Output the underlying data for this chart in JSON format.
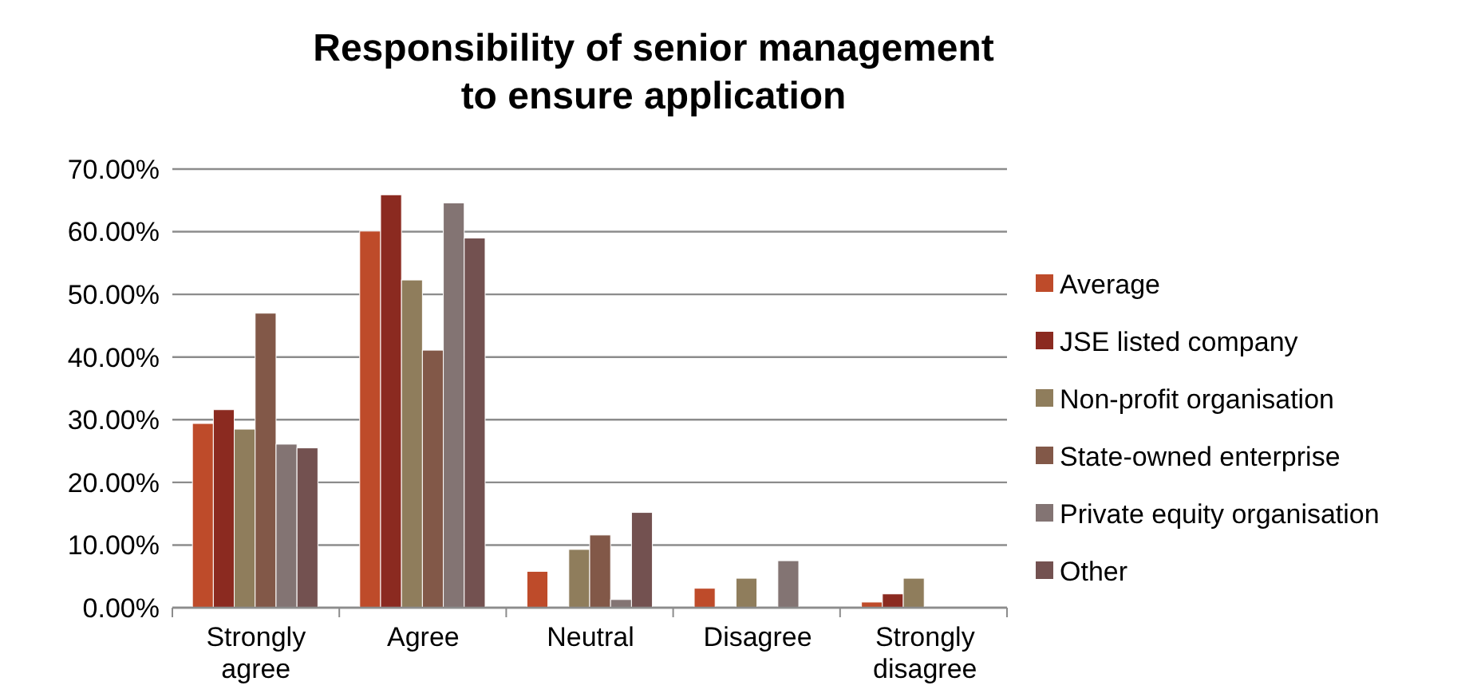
{
  "chart_data": {
    "type": "bar",
    "title": "Responsibility of senior management\nto ensure application",
    "categories": [
      "Strongly\nagree",
      "Agree",
      "Neutral",
      "Disagree",
      "Strongly\ndisagree"
    ],
    "series": [
      {
        "name": "Average",
        "color": "#be4b2a",
        "values": [
          29.4,
          60.1,
          5.8,
          3.1,
          0.9
        ]
      },
      {
        "name": "JSE listed company",
        "color": "#8b2a20",
        "values": [
          31.6,
          65.9,
          0,
          0,
          2.2
        ]
      },
      {
        "name": "Non-profit organisation",
        "color": "#8f7d5c",
        "values": [
          28.5,
          52.3,
          9.3,
          4.7,
          4.7
        ]
      },
      {
        "name": "State-owned enterprise",
        "color": "#825848",
        "values": [
          47.0,
          41.1,
          11.6,
          0,
          0
        ]
      },
      {
        "name": "Private equity organisation",
        "color": "#837473",
        "values": [
          26.1,
          64.6,
          1.3,
          7.5,
          0
        ]
      },
      {
        "name": "Other",
        "color": "#735150",
        "values": [
          25.5,
          59.0,
          15.2,
          0,
          0
        ]
      }
    ],
    "ylim": [
      0,
      70
    ],
    "yticks": [
      {
        "value": 0,
        "label": "0.00%"
      },
      {
        "value": 10,
        "label": "10.00%"
      },
      {
        "value": 20,
        "label": "20.00%"
      },
      {
        "value": 30,
        "label": "30.00%"
      },
      {
        "value": 40,
        "label": "40.00%"
      },
      {
        "value": 50,
        "label": "50.00%"
      },
      {
        "value": 60,
        "label": "60.00%"
      },
      {
        "value": 70,
        "label": "70.00%"
      }
    ],
    "grid": "y",
    "legend": "right"
  }
}
